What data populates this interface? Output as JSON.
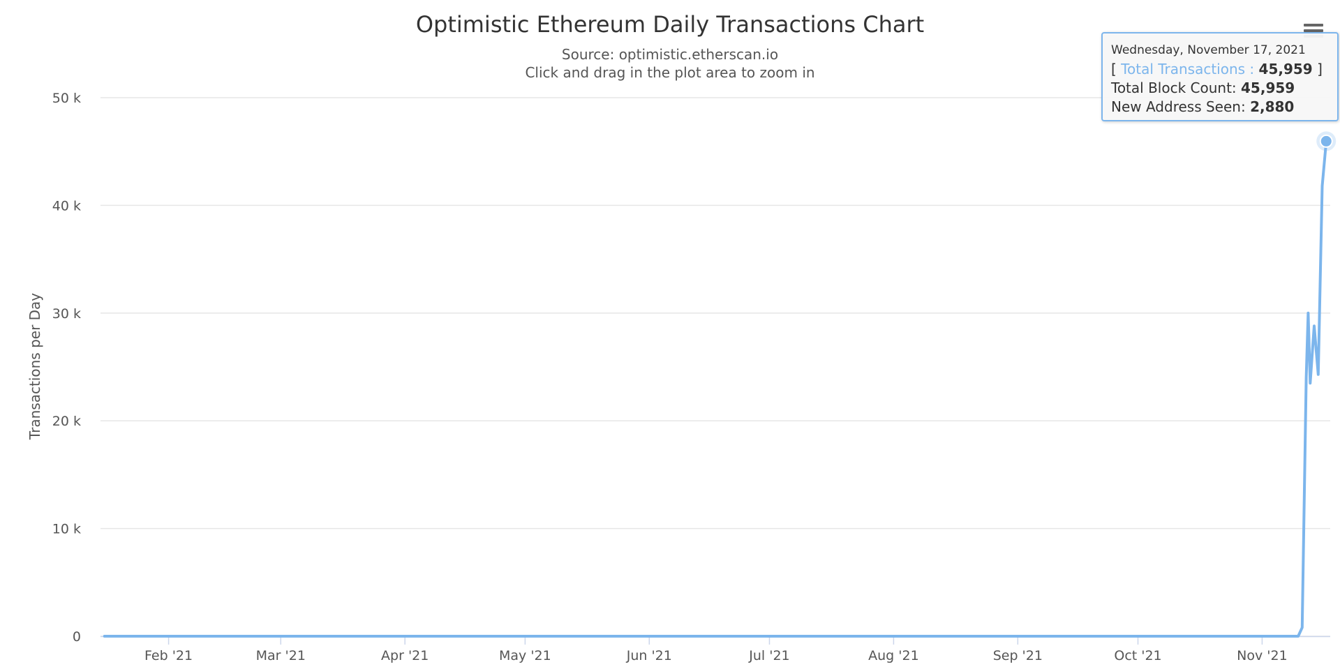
{
  "chart_data": {
    "type": "line",
    "title": "Optimistic Ethereum Daily Transactions Chart",
    "subtitle": "Source: optimistic.etherscan.io",
    "subtitle2": "Click and drag in the plot area to zoom in",
    "ylabel": "Transactions per Day",
    "xlabel": "",
    "ylim": [
      0,
      50000
    ],
    "xlim": [
      "2021-01-15",
      "2021-11-18"
    ],
    "y_ticks": [
      {
        "value": 0,
        "label": "0"
      },
      {
        "value": 10000,
        "label": "10 k"
      },
      {
        "value": 20000,
        "label": "20 k"
      },
      {
        "value": 30000,
        "label": "30 k"
      },
      {
        "value": 40000,
        "label": "40 k"
      },
      {
        "value": 50000,
        "label": "50 k"
      }
    ],
    "x_ticks": [
      {
        "date": "2021-02-01",
        "label": "Feb '21"
      },
      {
        "date": "2021-03-01",
        "label": "Mar '21"
      },
      {
        "date": "2021-04-01",
        "label": "Apr '21"
      },
      {
        "date": "2021-05-01",
        "label": "May '21"
      },
      {
        "date": "2021-06-01",
        "label": "Jun '21"
      },
      {
        "date": "2021-07-01",
        "label": "Jul '21"
      },
      {
        "date": "2021-08-01",
        "label": "Aug '21"
      },
      {
        "date": "2021-09-01",
        "label": "Sep '21"
      },
      {
        "date": "2021-10-01",
        "label": "Oct '21"
      },
      {
        "date": "2021-11-01",
        "label": "Nov '21"
      }
    ],
    "grid": true,
    "legend": "none",
    "series": [
      {
        "color": "#7cb5ec",
        "points": [
          {
            "x": "2021-01-16",
            "y": 0
          },
          {
            "x": "2021-11-10",
            "y": 0
          },
          {
            "x": "2021-11-11",
            "y": 800
          },
          {
            "x": "2021-11-12",
            "y": 24000
          },
          {
            "x": "2021-11-12T12:00",
            "y": 30000
          },
          {
            "x": "2021-11-13",
            "y": 23500
          },
          {
            "x": "2021-11-14",
            "y": 28800
          },
          {
            "x": "2021-11-15",
            "y": 24300
          },
          {
            "x": "2021-11-16",
            "y": 41800
          },
          {
            "x": "2021-11-17",
            "y": 45959
          }
        ]
      }
    ],
    "tooltip": {
      "date": "Wednesday, November 17, 2021",
      "bracket_open": "[",
      "series_label": "Total Transactions :",
      "value": "45,959",
      "bracket_close": "]",
      "block_label": "Total Block Count:",
      "block_value": "45,959",
      "address_label": "New Address Seen:",
      "address_value": "2,880"
    }
  }
}
